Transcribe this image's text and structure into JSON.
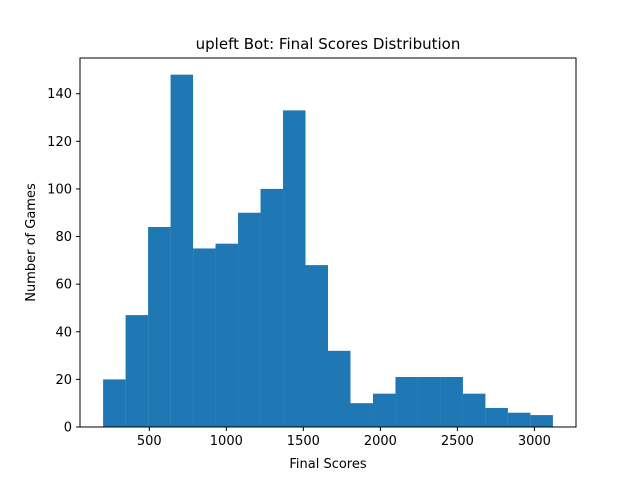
{
  "chart_data": {
    "type": "bar",
    "title": "upleft Bot: Final Scores Distribution",
    "xlabel": "Final Scores",
    "ylabel": "Number of Games",
    "xlim": [
      50,
      3270
    ],
    "ylim": [
      0,
      155
    ],
    "xticks": [
      500,
      1000,
      1500,
      2000,
      2500,
      3000
    ],
    "yticks": [
      0,
      20,
      40,
      60,
      80,
      100,
      120,
      140
    ],
    "grid": false,
    "bar_color": "#1f77b4",
    "bins": [
      {
        "x0": 200,
        "x1": 346,
        "count": 20
      },
      {
        "x0": 346,
        "x1": 492,
        "count": 47
      },
      {
        "x0": 492,
        "x1": 638,
        "count": 84
      },
      {
        "x0": 638,
        "x1": 784,
        "count": 148
      },
      {
        "x0": 784,
        "x1": 930,
        "count": 75
      },
      {
        "x0": 930,
        "x1": 1076,
        "count": 77
      },
      {
        "x0": 1076,
        "x1": 1222,
        "count": 90
      },
      {
        "x0": 1222,
        "x1": 1368,
        "count": 100
      },
      {
        "x0": 1368,
        "x1": 1514,
        "count": 133
      },
      {
        "x0": 1514,
        "x1": 1660,
        "count": 68
      },
      {
        "x0": 1660,
        "x1": 1806,
        "count": 32
      },
      {
        "x0": 1806,
        "x1": 1952,
        "count": 10
      },
      {
        "x0": 1952,
        "x1": 2098,
        "count": 14
      },
      {
        "x0": 2098,
        "x1": 2244,
        "count": 21
      },
      {
        "x0": 2244,
        "x1": 2390,
        "count": 21
      },
      {
        "x0": 2390,
        "x1": 2536,
        "count": 21
      },
      {
        "x0": 2536,
        "x1": 2682,
        "count": 14
      },
      {
        "x0": 2682,
        "x1": 2828,
        "count": 8
      },
      {
        "x0": 2828,
        "x1": 2974,
        "count": 6
      },
      {
        "x0": 2974,
        "x1": 3120,
        "count": 5
      }
    ]
  }
}
